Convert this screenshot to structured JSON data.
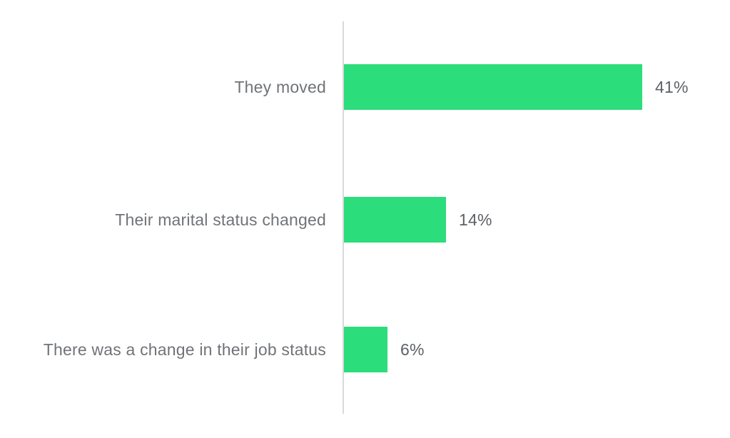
{
  "chart_data": {
    "type": "bar",
    "orientation": "horizontal",
    "title": "",
    "xlabel": "",
    "ylabel": "",
    "categories": [
      "They moved",
      "Their marital status changed",
      "There was a change in their job status"
    ],
    "values": [
      41,
      14,
      6
    ],
    "value_labels": [
      "41%",
      "14%",
      "6%"
    ],
    "unit": "%",
    "xlim": [
      0,
      53
    ],
    "grid": false,
    "legend_position": "none",
    "bar_color": "#2bdd7b",
    "axis_line_color": "#d9d9d9",
    "category_label_color": "#707377",
    "value_label_color": "#5e6165",
    "background_color": "#ffffff"
  }
}
